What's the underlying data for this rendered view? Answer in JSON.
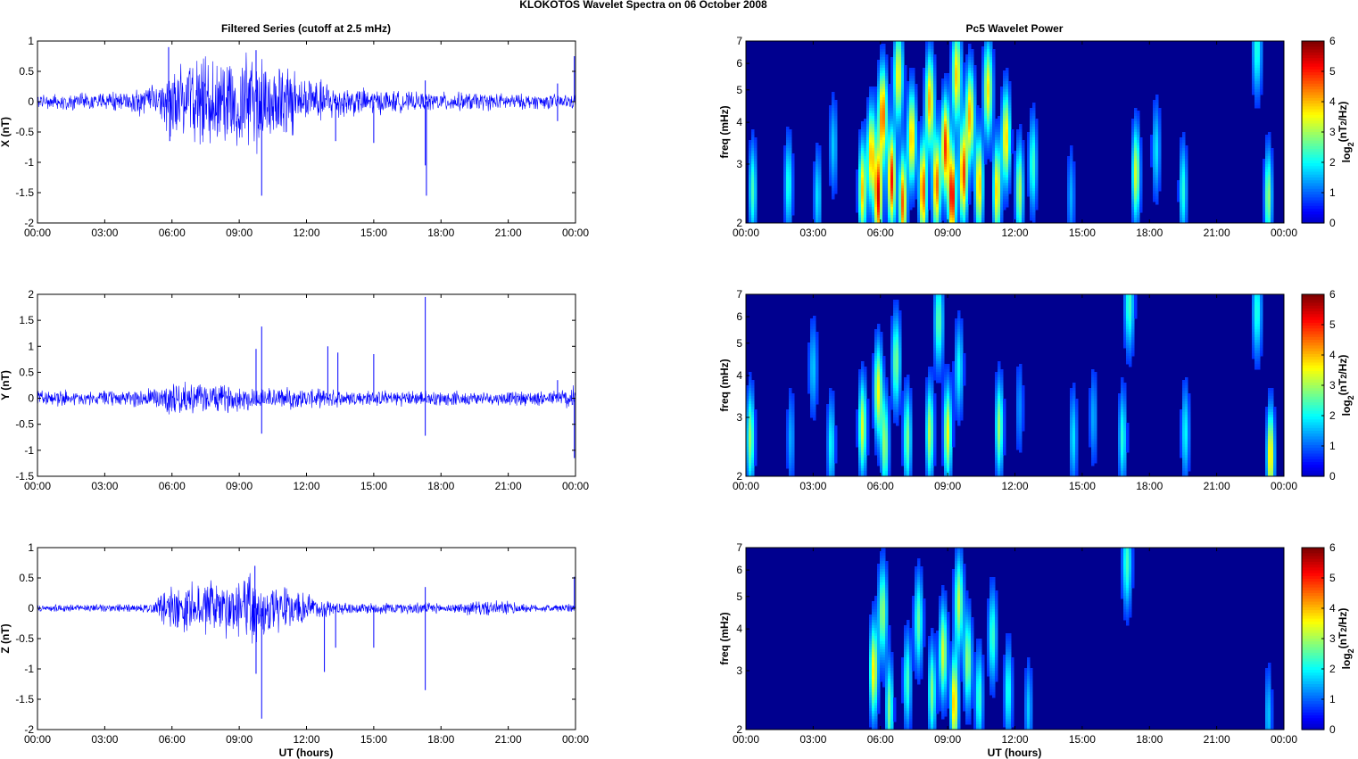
{
  "figure": {
    "suptitle": "KLOKOTOS Wavelet Spectra on 06 October   2008",
    "left_title": "Filtered Series (cutoff at 2.5 mHz)",
    "right_title": "Pc5 Wavelet Power",
    "xlabel": "UT (hours)"
  },
  "colors": {
    "trace": "#0000ff",
    "background": "#00008f",
    "axis": "#000000",
    "colormap": "jet"
  },
  "chart_data": [
    {
      "type": "line",
      "name": "X",
      "ylabel": "X (nT)",
      "ylim": [
        -2,
        1
      ],
      "yticks": [
        "1",
        "0.5",
        "0",
        "-0.5",
        "-1",
        "-1.5",
        "-2"
      ],
      "ytick_values": [
        1,
        0.5,
        0,
        -0.5,
        -1,
        -1.5,
        -2
      ],
      "xlim_hours": [
        0,
        24
      ],
      "xticks": [
        "00:00",
        "03:00",
        "06:00",
        "09:00",
        "12:00",
        "15:00",
        "18:00",
        "21:00",
        "00:00"
      ],
      "envelope": [
        {
          "t": 0,
          "a": 0.1
        },
        {
          "t": 2,
          "a": 0.11
        },
        {
          "t": 4,
          "a": 0.14
        },
        {
          "t": 5.5,
          "a": 0.25
        },
        {
          "t": 6,
          "a": 0.5
        },
        {
          "t": 8,
          "a": 0.6
        },
        {
          "t": 9.5,
          "a": 0.7
        },
        {
          "t": 11,
          "a": 0.5
        },
        {
          "t": 12.5,
          "a": 0.3
        },
        {
          "t": 14,
          "a": 0.2
        },
        {
          "t": 17,
          "a": 0.12
        },
        {
          "t": 18,
          "a": 0.13
        },
        {
          "t": 20,
          "a": 0.12
        },
        {
          "t": 22,
          "a": 0.1
        },
        {
          "t": 24,
          "a": 0.1
        }
      ],
      "spikes": [
        {
          "t": 5.85,
          "v": 0.9
        },
        {
          "t": 5.9,
          "v": -0.65
        },
        {
          "t": 9.75,
          "v": 0.85
        },
        {
          "t": 10.0,
          "v": -1.55
        },
        {
          "t": 13.3,
          "v": -0.65
        },
        {
          "t": 15.0,
          "v": -0.68
        },
        {
          "t": 17.3,
          "v": 0.35
        },
        {
          "t": 17.3,
          "v": -1.05
        },
        {
          "t": 17.35,
          "v": -1.55
        },
        {
          "t": 23.2,
          "v": 0.3
        },
        {
          "t": 23.2,
          "v": -0.32
        },
        {
          "t": 23.95,
          "v": 0.75
        }
      ]
    },
    {
      "type": "line",
      "name": "Y",
      "ylabel": "Y (nT)",
      "ylim": [
        -1.5,
        2
      ],
      "yticks": [
        "2",
        "1.5",
        "1",
        "0.5",
        "0",
        "-0.5",
        "-1",
        "-1.5"
      ],
      "ytick_values": [
        2,
        1.5,
        1,
        0.5,
        0,
        -0.5,
        -1,
        -1.5
      ],
      "xlim_hours": [
        0,
        24
      ],
      "xticks": [
        "00:00",
        "03:00",
        "06:00",
        "09:00",
        "12:00",
        "15:00",
        "18:00",
        "21:00",
        "00:00"
      ],
      "envelope": [
        {
          "t": 0,
          "a": 0.15
        },
        {
          "t": 2,
          "a": 0.12
        },
        {
          "t": 4,
          "a": 0.12
        },
        {
          "t": 5.5,
          "a": 0.2
        },
        {
          "t": 6,
          "a": 0.25
        },
        {
          "t": 9,
          "a": 0.2
        },
        {
          "t": 12,
          "a": 0.15
        },
        {
          "t": 15,
          "a": 0.12
        },
        {
          "t": 17,
          "a": 0.12
        },
        {
          "t": 20,
          "a": 0.1
        },
        {
          "t": 23,
          "a": 0.12
        },
        {
          "t": 24,
          "a": 0.2
        }
      ],
      "spikes": [
        {
          "t": 9.75,
          "v": 0.95
        },
        {
          "t": 10.0,
          "v": 1.38
        },
        {
          "t": 10.0,
          "v": -0.68
        },
        {
          "t": 12.95,
          "v": 1.0
        },
        {
          "t": 13.4,
          "v": 0.88
        },
        {
          "t": 15.0,
          "v": 0.85
        },
        {
          "t": 17.3,
          "v": 1.95
        },
        {
          "t": 17.3,
          "v": -0.72
        },
        {
          "t": 23.2,
          "v": 0.35
        },
        {
          "t": 23.95,
          "v": -1.15
        }
      ]
    },
    {
      "type": "line",
      "name": "Z",
      "ylabel": "Z (nT)",
      "ylim": [
        -2,
        1
      ],
      "yticks": [
        "1",
        "0.5",
        "0",
        "-0.5",
        "-1",
        "-1.5",
        "-2"
      ],
      "ytick_values": [
        1,
        0.5,
        0,
        -0.5,
        -1,
        -1.5,
        -2
      ],
      "xlim_hours": [
        0,
        24
      ],
      "xticks": [
        "00:00",
        "03:00",
        "06:00",
        "09:00",
        "12:00",
        "15:00",
        "18:00",
        "21:00",
        "00:00"
      ],
      "envelope": [
        {
          "t": 0,
          "a": 0.05
        },
        {
          "t": 5,
          "a": 0.06
        },
        {
          "t": 5.8,
          "a": 0.25
        },
        {
          "t": 7,
          "a": 0.35
        },
        {
          "t": 9.5,
          "a": 0.45
        },
        {
          "t": 11,
          "a": 0.3
        },
        {
          "t": 12.5,
          "a": 0.15
        },
        {
          "t": 13.5,
          "a": 0.08
        },
        {
          "t": 17,
          "a": 0.08
        },
        {
          "t": 18.5,
          "a": 0.06
        },
        {
          "t": 19.5,
          "a": 0.1
        },
        {
          "t": 21,
          "a": 0.1
        },
        {
          "t": 22,
          "a": 0.05
        },
        {
          "t": 24,
          "a": 0.06
        }
      ],
      "spikes": [
        {
          "t": 9.7,
          "v": 0.7
        },
        {
          "t": 9.75,
          "v": -1.08
        },
        {
          "t": 10.0,
          "v": -1.82
        },
        {
          "t": 12.8,
          "v": -1.05
        },
        {
          "t": 13.3,
          "v": -0.65
        },
        {
          "t": 15.0,
          "v": -0.65
        },
        {
          "t": 17.3,
          "v": 0.35
        },
        {
          "t": 17.3,
          "v": -1.35
        },
        {
          "t": 23.95,
          "v": 0.52
        }
      ]
    },
    {
      "type": "heatmap",
      "name": "X",
      "ylabel": "freq (mHz)",
      "yscale": "log",
      "ylim_mhz": [
        2,
        7
      ],
      "yticks": [
        "7",
        "6",
        "5",
        "4",
        "3",
        "2"
      ],
      "ytick_values": [
        7,
        6,
        5,
        4,
        3,
        2
      ],
      "xlim_hours": [
        0,
        24
      ],
      "xticks": [
        "00:00",
        "03:00",
        "06:00",
        "09:00",
        "12:00",
        "15:00",
        "18:00",
        "21:00",
        "00:00"
      ],
      "colorbar": {
        "label": "log2(nT^2/Hz)",
        "ticks": [
          "6",
          "5",
          "4",
          "3",
          "2",
          "1",
          "0"
        ],
        "range": [
          0,
          6
        ]
      },
      "blobs": [
        {
          "t": 0.3,
          "f": 2.5,
          "p": 2.2
        },
        {
          "t": 1.9,
          "f": 2.6,
          "p": 2.0
        },
        {
          "t": 3.2,
          "f": 2.4,
          "p": 1.6
        },
        {
          "t": 3.9,
          "f": 3.4,
          "p": 1.4
        },
        {
          "t": 5.2,
          "f": 2.5,
          "p": 3.8
        },
        {
          "t": 5.6,
          "f": 3.2,
          "p": 4.0
        },
        {
          "t": 5.9,
          "f": 2.4,
          "p": 5.3
        },
        {
          "t": 6.1,
          "f": 4.2,
          "p": 4.6
        },
        {
          "t": 6.5,
          "f": 2.7,
          "p": 5.1
        },
        {
          "t": 6.8,
          "f": 5.5,
          "p": 3.5
        },
        {
          "t": 7.0,
          "f": 2.3,
          "p": 4.6
        },
        {
          "t": 7.4,
          "f": 3.6,
          "p": 4.0
        },
        {
          "t": 7.9,
          "f": 2.5,
          "p": 4.8
        },
        {
          "t": 8.2,
          "f": 4.6,
          "p": 4.0
        },
        {
          "t": 8.5,
          "f": 2.6,
          "p": 4.6
        },
        {
          "t": 8.9,
          "f": 3.4,
          "p": 4.8
        },
        {
          "t": 9.2,
          "f": 2.4,
          "p": 5.5
        },
        {
          "t": 9.4,
          "f": 5.5,
          "p": 3.8
        },
        {
          "t": 9.7,
          "f": 2.8,
          "p": 4.8
        },
        {
          "t": 10.0,
          "f": 4.2,
          "p": 4.0
        },
        {
          "t": 10.4,
          "f": 2.6,
          "p": 4.0
        },
        {
          "t": 10.8,
          "f": 5.0,
          "p": 3.6
        },
        {
          "t": 11.2,
          "f": 2.5,
          "p": 3.8
        },
        {
          "t": 11.6,
          "f": 3.6,
          "p": 3.8
        },
        {
          "t": 12.2,
          "f": 2.5,
          "p": 3.0
        },
        {
          "t": 12.8,
          "f": 3.0,
          "p": 2.2
        },
        {
          "t": 14.5,
          "f": 2.4,
          "p": 1.2
        },
        {
          "t": 17.4,
          "f": 2.8,
          "p": 3.2
        },
        {
          "t": 18.3,
          "f": 3.3,
          "p": 1.6
        },
        {
          "t": 19.5,
          "f": 2.5,
          "p": 2.0
        },
        {
          "t": 23.3,
          "f": 2.4,
          "p": 2.8
        },
        {
          "t": 22.8,
          "f": 6.6,
          "p": 2.0
        }
      ]
    },
    {
      "type": "heatmap",
      "name": "Y",
      "ylabel": "freq (mHz)",
      "yscale": "log",
      "ylim_mhz": [
        2,
        7
      ],
      "yticks": [
        "7",
        "6",
        "5",
        "4",
        "3",
        "2"
      ],
      "ytick_values": [
        7,
        6,
        5,
        4,
        3,
        2
      ],
      "xlim_hours": [
        0,
        24
      ],
      "xticks": [
        "00:00",
        "03:00",
        "06:00",
        "09:00",
        "12:00",
        "15:00",
        "18:00",
        "21:00",
        "00:00"
      ],
      "colorbar": {
        "label": "log2(nT^2/Hz)",
        "ticks": [
          "6",
          "5",
          "4",
          "3",
          "2",
          "1",
          "0"
        ],
        "range": [
          0,
          6
        ]
      },
      "blobs": [
        {
          "t": 0.2,
          "f": 2.6,
          "p": 2.8
        },
        {
          "t": 2.0,
          "f": 2.6,
          "p": 1.2
        },
        {
          "t": 3.0,
          "f": 4.2,
          "p": 1.4
        },
        {
          "t": 3.8,
          "f": 2.5,
          "p": 1.8
        },
        {
          "t": 5.2,
          "f": 2.8,
          "p": 3.2
        },
        {
          "t": 5.9,
          "f": 3.6,
          "p": 3.4
        },
        {
          "t": 6.2,
          "f": 2.5,
          "p": 2.8
        },
        {
          "t": 6.7,
          "f": 4.4,
          "p": 2.6
        },
        {
          "t": 7.2,
          "f": 2.6,
          "p": 2.6
        },
        {
          "t": 8.2,
          "f": 2.7,
          "p": 3.0
        },
        {
          "t": 8.6,
          "f": 5.8,
          "p": 2.4
        },
        {
          "t": 9.0,
          "f": 2.7,
          "p": 3.4
        },
        {
          "t": 9.5,
          "f": 4.2,
          "p": 1.8
        },
        {
          "t": 11.3,
          "f": 2.8,
          "p": 2.8
        },
        {
          "t": 12.2,
          "f": 3.2,
          "p": 1.0
        },
        {
          "t": 14.6,
          "f": 2.6,
          "p": 1.6
        },
        {
          "t": 15.5,
          "f": 3.0,
          "p": 1.2
        },
        {
          "t": 16.8,
          "f": 2.6,
          "p": 2.0
        },
        {
          "t": 17.1,
          "f": 6.5,
          "p": 2.2
        },
        {
          "t": 19.6,
          "f": 2.7,
          "p": 1.8
        },
        {
          "t": 22.8,
          "f": 6.2,
          "p": 2.0
        },
        {
          "t": 23.4,
          "f": 2.3,
          "p": 3.8
        }
      ]
    },
    {
      "type": "heatmap",
      "name": "Z",
      "ylabel": "freq (mHz)",
      "yscale": "log",
      "ylim_mhz": [
        2,
        7
      ],
      "yticks": [
        "7",
        "6",
        "5",
        "4",
        "3",
        "2"
      ],
      "ytick_values": [
        7,
        6,
        5,
        4,
        3,
        2
      ],
      "xlim_hours": [
        0,
        24
      ],
      "xticks": [
        "00:00",
        "03:00",
        "06:00",
        "09:00",
        "12:00",
        "15:00",
        "18:00",
        "21:00",
        "00:00"
      ],
      "colorbar": {
        "label": "log2(nT^2/Hz)",
        "ticks": [
          "6",
          "5",
          "4",
          "3",
          "2",
          "1",
          "0"
        ],
        "range": [
          0,
          6
        ]
      },
      "blobs": [
        {
          "t": 5.7,
          "f": 3.0,
          "p": 3.6
        },
        {
          "t": 6.1,
          "f": 4.5,
          "p": 2.8
        },
        {
          "t": 6.4,
          "f": 2.3,
          "p": 2.6
        },
        {
          "t": 7.2,
          "f": 2.8,
          "p": 2.2
        },
        {
          "t": 7.7,
          "f": 4.2,
          "p": 2.4
        },
        {
          "t": 8.3,
          "f": 2.6,
          "p": 2.6
        },
        {
          "t": 8.8,
          "f": 3.4,
          "p": 3.2
        },
        {
          "t": 9.3,
          "f": 2.4,
          "p": 4.0
        },
        {
          "t": 9.5,
          "f": 4.8,
          "p": 3.0
        },
        {
          "t": 9.9,
          "f": 3.2,
          "p": 2.8
        },
        {
          "t": 10.4,
          "f": 2.5,
          "p": 2.2
        },
        {
          "t": 11.0,
          "f": 3.8,
          "p": 2.2
        },
        {
          "t": 11.7,
          "f": 2.6,
          "p": 2.0
        },
        {
          "t": 12.6,
          "f": 2.3,
          "p": 1.4
        },
        {
          "t": 17.0,
          "f": 6.3,
          "p": 2.2
        },
        {
          "t": 23.3,
          "f": 2.2,
          "p": 1.4
        }
      ]
    }
  ]
}
